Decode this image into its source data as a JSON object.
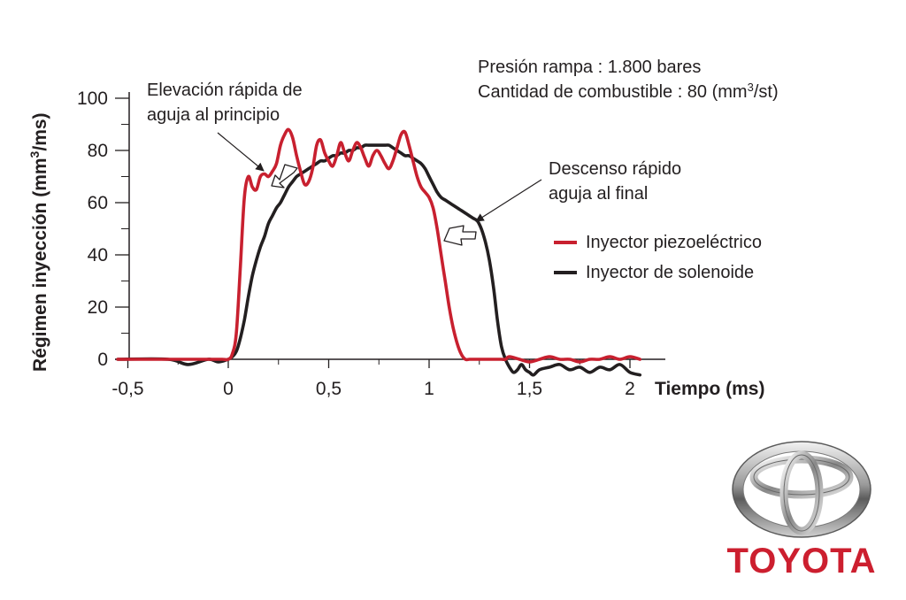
{
  "chart_data": {
    "type": "line",
    "xlabel": "Tiempo (ms)",
    "ylabel_main": "Régimen inyección (mm",
    "ylabel_sup": "3",
    "ylabel_end": "/ms)",
    "xlim": [
      -0.5,
      2.2
    ],
    "ylim": [
      0,
      100
    ],
    "x_ticks": [
      -0.5,
      0,
      0.5,
      1,
      1.5,
      2
    ],
    "x_tick_labels": [
      "-0,5",
      "0",
      "0,5",
      "1",
      "1,5",
      "2"
    ],
    "y_ticks": [
      0,
      20,
      40,
      60,
      80,
      100
    ],
    "y_tick_labels": [
      "0",
      "20",
      "40",
      "60",
      "80",
      "100"
    ],
    "grid": false,
    "legend_position": "right",
    "series": [
      {
        "name": "Inyector piezoeléctrico",
        "color": "#c8202f",
        "x": [
          -0.55,
          -0.3,
          -0.1,
          -0.03,
          0,
          0.02,
          0.04,
          0.06,
          0.08,
          0.1,
          0.12,
          0.14,
          0.16,
          0.18,
          0.2,
          0.22,
          0.24,
          0.26,
          0.28,
          0.3,
          0.32,
          0.34,
          0.36,
          0.38,
          0.4,
          0.42,
          0.44,
          0.46,
          0.48,
          0.5,
          0.52,
          0.54,
          0.56,
          0.58,
          0.6,
          0.62,
          0.64,
          0.66,
          0.68,
          0.7,
          0.72,
          0.74,
          0.76,
          0.78,
          0.8,
          0.82,
          0.84,
          0.86,
          0.88,
          0.9,
          0.92,
          0.94,
          0.96,
          0.98,
          1.0,
          1.02,
          1.04,
          1.06,
          1.08,
          1.1,
          1.12,
          1.14,
          1.16,
          1.18,
          1.2,
          1.22,
          1.24,
          1.26,
          1.28,
          1.3,
          1.32,
          1.34,
          1.36,
          1.38,
          1.4,
          1.45,
          1.5,
          1.55,
          1.6,
          1.65,
          1.7,
          1.75,
          1.8,
          1.85,
          1.9,
          1.95,
          2.0,
          2.05
        ],
        "y": [
          0,
          0,
          0,
          0,
          0,
          2,
          10,
          35,
          62,
          70,
          66,
          65,
          70,
          71,
          70,
          72,
          75,
          82,
          86,
          88,
          85,
          78,
          72,
          67,
          68,
          73,
          82,
          84,
          79,
          76,
          74,
          78,
          83,
          79,
          76,
          80,
          83,
          81,
          77,
          74,
          78,
          80,
          78,
          75,
          73,
          76,
          81,
          86,
          87,
          82,
          76,
          70,
          66,
          64,
          62,
          58,
          50,
          40,
          30,
          20,
          12,
          6,
          2,
          0,
          0,
          0,
          0,
          0,
          0,
          0,
          0,
          0,
          0,
          0,
          1,
          0,
          -1,
          0,
          1,
          0,
          0,
          -1,
          0,
          0,
          1,
          0,
          1,
          0
        ]
      },
      {
        "name": "Inyector de solenoide",
        "color": "#231f20",
        "x": [
          -0.55,
          -0.3,
          -0.2,
          -0.1,
          -0.05,
          0,
          0.02,
          0.04,
          0.06,
          0.08,
          0.1,
          0.12,
          0.14,
          0.16,
          0.18,
          0.2,
          0.22,
          0.24,
          0.26,
          0.28,
          0.3,
          0.32,
          0.34,
          0.36,
          0.38,
          0.4,
          0.42,
          0.44,
          0.46,
          0.48,
          0.5,
          0.52,
          0.54,
          0.56,
          0.58,
          0.6,
          0.62,
          0.64,
          0.66,
          0.68,
          0.7,
          0.72,
          0.74,
          0.76,
          0.78,
          0.8,
          0.82,
          0.84,
          0.86,
          0.88,
          0.9,
          0.92,
          0.94,
          0.96,
          0.98,
          1.0,
          1.02,
          1.04,
          1.06,
          1.08,
          1.1,
          1.12,
          1.14,
          1.16,
          1.18,
          1.2,
          1.22,
          1.24,
          1.26,
          1.28,
          1.3,
          1.32,
          1.34,
          1.36,
          1.38,
          1.4,
          1.42,
          1.44,
          1.46,
          1.48,
          1.5,
          1.52,
          1.55,
          1.6,
          1.65,
          1.7,
          1.75,
          1.8,
          1.85,
          1.9,
          1.95,
          2.0,
          2.05
        ],
        "y": [
          0,
          0,
          -2,
          0,
          -1,
          0,
          1,
          3,
          8,
          15,
          24,
          32,
          38,
          43,
          47,
          52,
          55,
          58,
          60,
          63,
          66,
          68,
          70,
          71,
          72,
          73,
          74,
          75,
          76,
          76,
          77,
          78,
          78,
          79,
          79,
          80,
          80,
          81,
          81,
          82,
          82,
          82,
          82,
          82,
          82,
          82,
          81,
          80,
          79,
          78,
          78,
          77,
          76,
          75,
          73,
          70,
          67,
          64,
          62,
          61,
          60,
          59,
          58,
          57,
          56,
          55,
          54,
          53,
          50,
          45,
          38,
          28,
          15,
          5,
          0,
          -3,
          -5,
          -4,
          -2,
          -4,
          -5,
          -6,
          -4,
          -3,
          -2,
          -4,
          -3,
          -5,
          -3,
          -4,
          -2,
          -5,
          -6
        ]
      }
    ],
    "annotations": {
      "start": [
        "Elevación rápida de",
        "aguja al principio"
      ],
      "end": [
        "Descenso rápido",
        "aguja al final"
      ]
    },
    "conditions": {
      "line1": "Presión rampa : 1.800 bares",
      "line2_main": "Cantidad de combustible : 80 (mm",
      "line2_sup": "3",
      "line2_end": "/st)"
    }
  },
  "brand": {
    "name": "TOYOTA",
    "logo_icon": "toyota-emblem-icon",
    "color": "#cc1f2f"
  }
}
